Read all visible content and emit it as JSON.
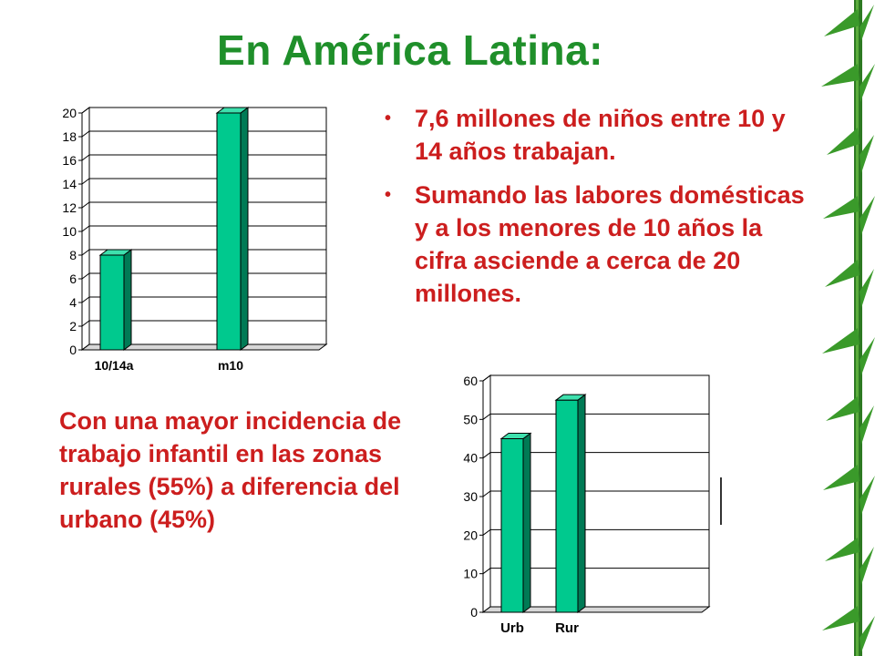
{
  "slide": {
    "title": "En América Latina:",
    "bullets": [
      "7,6 millones de niños entre 10 y 14 años trabajan.",
      "Sumando las labores domésticas y a los menores de 10 años la cifra asciende a cerca de 20 millones."
    ],
    "note": "Con una mayor incidencia de trabajo infantil en las zonas rurales (55%) a diferencia del urbano (45%)"
  },
  "colors": {
    "title": "#1f8f2a",
    "text": "#cc1e1e",
    "bar_front": "#00c98e",
    "bar_side": "#007a55",
    "bar_top": "#3ee0ad"
  },
  "decoration": "bamboo-leaves",
  "chart_data": [
    {
      "type": "bar",
      "categories": [
        "10/14a",
        "m10"
      ],
      "values": [
        8,
        20
      ],
      "ylim": [
        0,
        20
      ],
      "yticks": [
        0,
        2,
        4,
        6,
        8,
        10,
        12,
        14,
        16,
        18,
        20
      ],
      "grid": true,
      "legend": "none",
      "style": "3d"
    },
    {
      "type": "bar",
      "categories": [
        "Urb",
        "Rur"
      ],
      "values": [
        45,
        55
      ],
      "ylim": [
        0,
        60
      ],
      "yticks": [
        0,
        10,
        20,
        30,
        40,
        50,
        60
      ],
      "grid": true,
      "legend": "none",
      "style": "3d"
    }
  ]
}
